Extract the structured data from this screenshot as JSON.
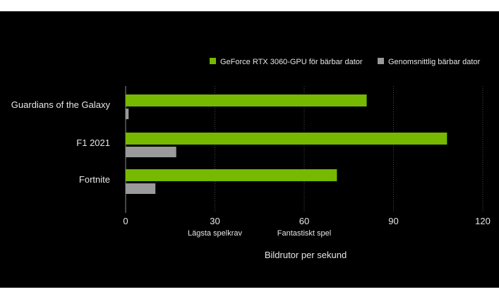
{
  "colors": {
    "background": "#000000",
    "gpu_bar": "#76b900",
    "avg_bar": "#9a9a9a",
    "text": "#e6e6e6",
    "grid": "#4a4a4a"
  },
  "chart_data": {
    "type": "bar",
    "orientation": "horizontal",
    "categories": [
      "Guardians of the Galaxy",
      "F1 2021",
      "Fortnite"
    ],
    "series": [
      {
        "name": "GeForce RTX 3060-GPU för bärbar dator",
        "values": [
          81,
          108,
          71
        ]
      },
      {
        "name": "Genomsnittlig bärbar dator",
        "values": [
          1,
          17,
          10
        ]
      }
    ],
    "xlim": [
      0,
      120
    ],
    "xticks": [
      0,
      30,
      60,
      90,
      120
    ],
    "xlabel": "Bildrutor per sekund",
    "annotations": [
      {
        "at": 30,
        "text": "Lägsta spelkrav"
      },
      {
        "at": 60,
        "text": "Fantastiskt spel"
      }
    ],
    "legend_position": "top-right",
    "grid": "vertical"
  }
}
